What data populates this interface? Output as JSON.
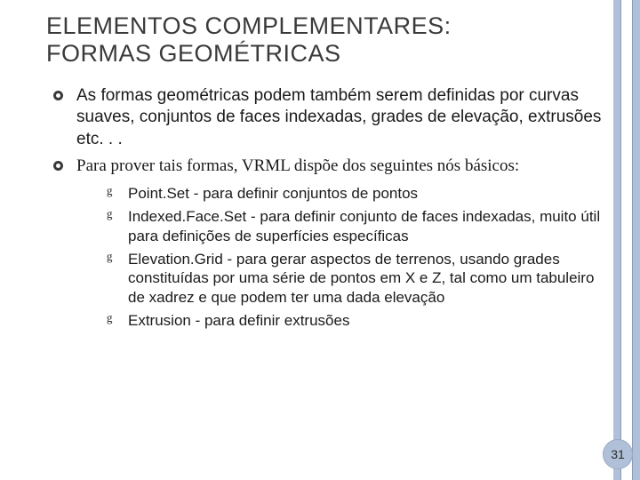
{
  "colors": {
    "rail": "#b0c0d8",
    "rail_border": "#8a9bb8",
    "badge_bg": "#b0c0d8",
    "badge_border": "#9aaac4",
    "text": "#1a1a1a",
    "title": "#3a3a3a",
    "background": "#ffffff"
  },
  "typography": {
    "title_fontsize": 27,
    "body_fontsize": 19,
    "sub_fontsize": 17,
    "title_family": "Arial",
    "serif_family": "Georgia"
  },
  "title_line1": "ELEMENTOS COMPLEMENTARES:",
  "title_line2": "FORMAS GEOMÉTRICAS",
  "bullets": [
    {
      "text": "As formas geométricas podem também serem definidas por curvas suaves, conjuntos de faces indexadas, grades de elevação, extrusões etc. . .",
      "serif": false
    },
    {
      "text": "Para prover tais formas, VRML dispõe dos seguintes nós básicos:",
      "serif": true
    }
  ],
  "subbullets": [
    "Point.Set - para definir conjuntos de pontos",
    "Indexed.Face.Set - para definir conjunto de faces indexadas, muito útil para definições de superfícies específicas",
    "Elevation.Grid - para gerar aspectos de terrenos, usando grades constituídas por uma série de pontos em X e Z, tal como um tabuleiro de xadrez e que podem ter uma dada elevação",
    "Extrusion - para definir extrusões"
  ],
  "page_number": "31"
}
